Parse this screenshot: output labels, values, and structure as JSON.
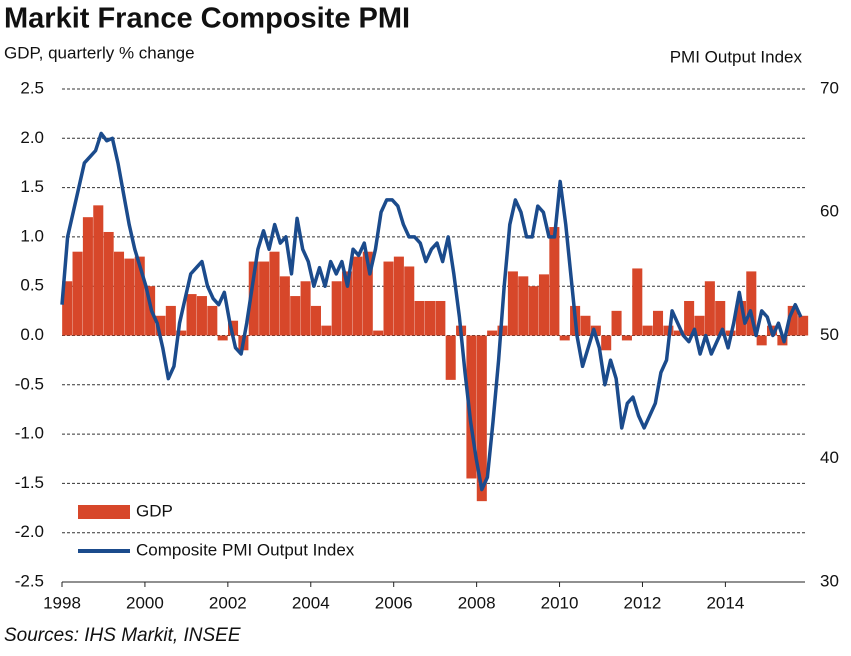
{
  "chart_data": {
    "type": "combo",
    "title": "Markit France Composite PMI",
    "y_label": "GDP, quarterly % change",
    "y2_label": "PMI Output Index",
    "note": "Sources: IHS Markit, INSEE",
    "xlim": [
      1998,
      2015.92
    ],
    "xticks": [
      1998,
      2000,
      2002,
      2004,
      2006,
      2008,
      2010,
      2012,
      2014
    ],
    "ylim": [
      -2.5,
      2.5
    ],
    "yticks": [
      2.5,
      {
        "value": 2,
        "label": "2.0"
      },
      1.5,
      {
        "value": 1,
        "label": "1.0"
      },
      0.5,
      {
        "value": 0,
        "label": "0.0"
      },
      -0.5,
      {
        "value": -1,
        "label": "-1.0"
      },
      -1.5,
      {
        "value": -2,
        "label": "-2.0"
      },
      -2.5
    ],
    "y2lim": [
      30,
      70
    ],
    "y2ticks": [
      30,
      40,
      50,
      60,
      70
    ],
    "grid": true,
    "legend": "lower-left",
    "series": [
      {
        "name": "GDP",
        "type": "bar",
        "color": "#d7472a",
        "x": [
          1998.125,
          1998.375,
          1998.625,
          1998.875,
          1999.125,
          1999.375,
          1999.625,
          1999.875,
          2000.125,
          2000.375,
          2000.625,
          2000.875,
          2001.125,
          2001.375,
          2001.625,
          2001.875,
          2002.125,
          2002.375,
          2002.625,
          2002.875,
          2003.125,
          2003.375,
          2003.625,
          2003.875,
          2004.125,
          2004.375,
          2004.625,
          2004.875,
          2005.125,
          2005.375,
          2005.625,
          2005.875,
          2006.125,
          2006.375,
          2006.625,
          2006.875,
          2007.125,
          2007.375,
          2007.625,
          2007.875,
          2008.125,
          2008.375,
          2008.625,
          2008.875,
          2009.125,
          2009.375,
          2009.625,
          2009.875,
          2010.125,
          2010.375,
          2010.625,
          2010.875,
          2011.125,
          2011.375,
          2011.625,
          2011.875,
          2012.125,
          2012.375,
          2012.625,
          2012.875,
          2013.125,
          2013.375,
          2013.625,
          2013.875,
          2014.125,
          2014.375,
          2014.625,
          2014.875,
          2015.125,
          2015.375,
          2015.625,
          2015.875
        ],
        "values": [
          0.55,
          0.85,
          1.2,
          1.32,
          1.05,
          0.85,
          0.78,
          0.8,
          0.5,
          0.2,
          0.3,
          0.05,
          0.42,
          0.4,
          0.3,
          -0.05,
          0.15,
          -0.15,
          0.75,
          0.75,
          0.85,
          0.6,
          0.4,
          0.55,
          0.3,
          0.1,
          0.55,
          0.65,
          0.8,
          0.85,
          0.05,
          0.75,
          0.8,
          0.7,
          0.35,
          0.35,
          0.35,
          -0.45,
          0.1,
          -1.45,
          -1.68,
          0.05,
          0.1,
          0.65,
          0.6,
          0.5,
          0.62,
          1.1,
          -0.05,
          0.3,
          0.2,
          0.1,
          -0.15,
          0.25,
          -0.05,
          0.68,
          0.1,
          0.25,
          0.1,
          0.05,
          0.35,
          0.2,
          0.55,
          0.35,
          0.05,
          0.35,
          0.65,
          -0.1,
          0.1,
          -0.1,
          0.3,
          0.2
        ]
      },
      {
        "name": "Composite PMI Output Index",
        "type": "line",
        "axis": "y2",
        "color": "#1b4b8c",
        "x": [
          1998,
          1998.135,
          1998.27,
          1998.405,
          1998.54,
          1998.675,
          1998.81,
          1998.945,
          1999.08,
          1999.215,
          1999.35,
          1999.485,
          1999.62,
          1999.755,
          1999.89,
          2000.025,
          2000.16,
          2000.295,
          2000.43,
          2000.565,
          2000.7,
          2000.835,
          2000.97,
          2001.105,
          2001.24,
          2001.375,
          2001.51,
          2001.645,
          2001.78,
          2001.915,
          2002.05,
          2002.185,
          2002.32,
          2002.455,
          2002.59,
          2002.725,
          2002.86,
          2002.995,
          2003.13,
          2003.265,
          2003.4,
          2003.535,
          2003.67,
          2003.805,
          2003.94,
          2004.075,
          2004.21,
          2004.345,
          2004.48,
          2004.615,
          2004.75,
          2004.885,
          2005.02,
          2005.155,
          2005.29,
          2005.425,
          2005.56,
          2005.695,
          2005.83,
          2005.965,
          2006.1,
          2006.235,
          2006.37,
          2006.505,
          2006.64,
          2006.775,
          2006.91,
          2007.045,
          2007.18,
          2007.315,
          2007.45,
          2007.585,
          2007.72,
          2007.855,
          2007.99,
          2008.125,
          2008.26,
          2008.395,
          2008.53,
          2008.665,
          2008.8,
          2008.935,
          2009.07,
          2009.205,
          2009.34,
          2009.475,
          2009.61,
          2009.745,
          2009.88,
          2010.015,
          2010.15,
          2010.285,
          2010.42,
          2010.555,
          2010.69,
          2010.825,
          2010.96,
          2011.095,
          2011.23,
          2011.365,
          2011.5,
          2011.635,
          2011.77,
          2011.905,
          2012.04,
          2012.175,
          2012.31,
          2012.445,
          2012.58,
          2012.715,
          2012.85,
          2012.985,
          2013.12,
          2013.255,
          2013.39,
          2013.525,
          2013.66,
          2013.795,
          2013.93,
          2014.065,
          2014.2,
          2014.335,
          2014.47,
          2014.605,
          2014.74,
          2014.875,
          2015.01,
          2015.145,
          2015.28,
          2015.415,
          2015.55,
          2015.685,
          2015.82
        ],
        "values": [
          52.5,
          58,
          60,
          62,
          64,
          64.5,
          65,
          66.4,
          65.8,
          66,
          64,
          61.5,
          59,
          57,
          55.5,
          54,
          52,
          51,
          49,
          46.5,
          47.5,
          51,
          53,
          55,
          55.5,
          56,
          54,
          53,
          52.5,
          53.5,
          51,
          49,
          48.5,
          51,
          54,
          57,
          58.5,
          57,
          59,
          57.5,
          58,
          55,
          59.5,
          57,
          56,
          54,
          55.5,
          54,
          56,
          55,
          56,
          54,
          57,
          56.5,
          57.5,
          55,
          57,
          60,
          61,
          61,
          60.5,
          59,
          58,
          58,
          57.5,
          56,
          57,
          57.5,
          56,
          58,
          55,
          51.5,
          47,
          43,
          40,
          37.5,
          38.5,
          43,
          48,
          54,
          59,
          61,
          60,
          58,
          58,
          60.5,
          60,
          58,
          58,
          62.5,
          59,
          54.5,
          50,
          47.5,
          49,
          50.5,
          49,
          46,
          48,
          46.5,
          42.5,
          44.5,
          45,
          43.5,
          42.5,
          43.5,
          44.5,
          47,
          48,
          52,
          51,
          50,
          49.5,
          50.5,
          48.5,
          50,
          48.5,
          49.5,
          50.5,
          49,
          51,
          53.5,
          51,
          52,
          50,
          52,
          51.5,
          50,
          51,
          49.5,
          51.5,
          52.5,
          51.5
        ]
      }
    ]
  }
}
